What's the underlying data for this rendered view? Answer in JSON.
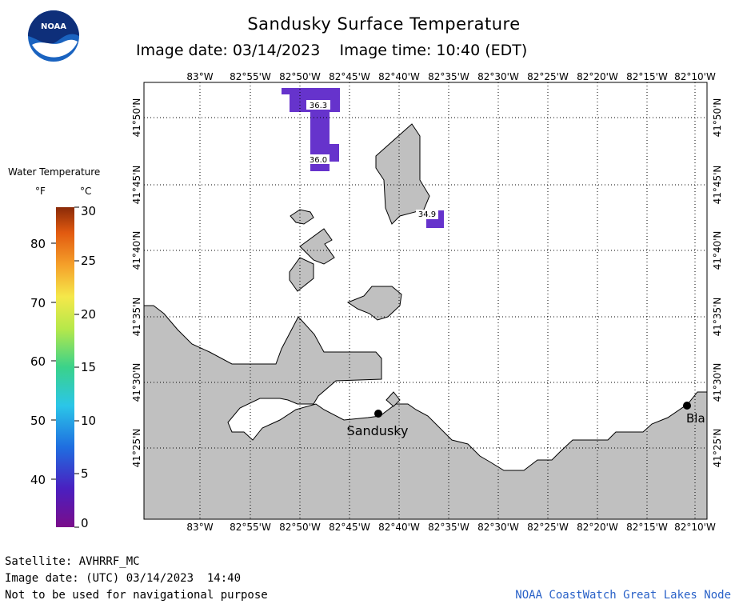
{
  "header": {
    "title": "Sandusky Surface Temperature",
    "date_line": "Image date: 03/14/2023    Image time: 10:40 (EDT)",
    "logo_text": "NOAA"
  },
  "map": {
    "lon_labels": [
      "83°W",
      "82°55'W",
      "82°50'W",
      "82°45'W",
      "82°40'W",
      "82°35'W",
      "82°30'W",
      "82°25'W",
      "82°20'W",
      "82°15'W",
      "82°10'W"
    ],
    "lat_labels": [
      "41°50'N",
      "41°45'N",
      "41°40'N",
      "41°35'N",
      "41°30'N",
      "41°25'N"
    ],
    "temp_labels": [
      "36.3",
      "36.0",
      "34.9"
    ],
    "places": [
      "Sandusky",
      "Bla"
    ],
    "colors": {
      "land": "#c0c0c0",
      "water": "#ffffff",
      "cold_water": "#6633cc"
    }
  },
  "legend": {
    "title": "Water Temperature",
    "unit_f": "°F",
    "unit_c": "°C",
    "fahrenheit_ticks": [
      "80",
      "70",
      "60",
      "50",
      "40"
    ],
    "celsius_ticks": [
      "30",
      "25",
      "20",
      "15",
      "10",
      "5",
      "0"
    ]
  },
  "footer": {
    "satellite": "Satellite: AVHRRF_MC",
    "utc_date": "Image date: (UTC) 03/14/2023  14:40",
    "disclaimer": "Not to be used for navigational purpose",
    "credit": "NOAA CoastWatch Great Lakes Node"
  }
}
